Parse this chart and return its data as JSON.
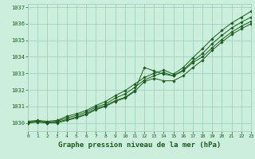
{
  "xlabel": "Graphe pression niveau de la mer (hPa)",
  "xlim": [
    0,
    23
  ],
  "ylim": [
    1029.5,
    1037.2
  ],
  "yticks": [
    1030,
    1031,
    1032,
    1033,
    1034,
    1035,
    1036,
    1037
  ],
  "xticks": [
    0,
    1,
    2,
    3,
    4,
    5,
    6,
    7,
    8,
    9,
    10,
    11,
    12,
    13,
    14,
    15,
    16,
    17,
    18,
    19,
    20,
    21,
    22,
    23
  ],
  "background_color": "#cceedd",
  "grid_color": "#99ccbb",
  "line_color": "#1a5c1a",
  "series": [
    [
      1030.0,
      1030.1,
      1030.0,
      1030.05,
      1030.2,
      1030.35,
      1030.55,
      1030.85,
      1031.05,
      1031.35,
      1031.55,
      1031.95,
      1033.35,
      1033.15,
      1032.95,
      1032.85,
      1033.15,
      1033.65,
      1034.0,
      1034.55,
      1035.05,
      1035.5,
      1035.85,
      1036.15
    ],
    [
      1030.0,
      1030.05,
      1030.0,
      1030.0,
      1030.15,
      1030.3,
      1030.5,
      1030.8,
      1031.0,
      1031.3,
      1031.5,
      1031.9,
      1032.5,
      1032.7,
      1032.55,
      1032.55,
      1032.85,
      1033.35,
      1033.8,
      1034.4,
      1034.9,
      1035.35,
      1035.7,
      1036.0
    ],
    [
      1030.05,
      1030.1,
      1030.05,
      1030.1,
      1030.3,
      1030.45,
      1030.65,
      1030.95,
      1031.15,
      1031.5,
      1031.75,
      1032.15,
      1032.6,
      1032.85,
      1033.05,
      1032.85,
      1033.2,
      1033.75,
      1034.2,
      1034.8,
      1035.3,
      1035.75,
      1036.1,
      1036.4
    ],
    [
      1030.1,
      1030.15,
      1030.1,
      1030.15,
      1030.4,
      1030.55,
      1030.75,
      1031.05,
      1031.3,
      1031.65,
      1031.95,
      1032.35,
      1032.75,
      1033.0,
      1033.2,
      1032.95,
      1033.35,
      1033.95,
      1034.5,
      1035.1,
      1035.6,
      1036.05,
      1036.4,
      1036.75
    ]
  ]
}
